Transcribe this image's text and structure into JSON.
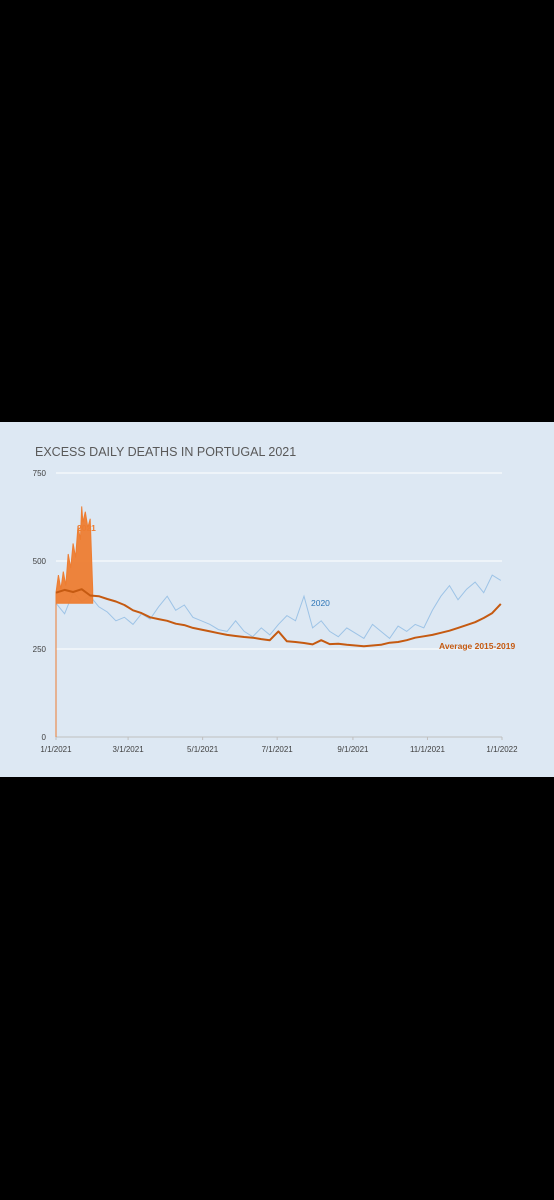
{
  "chart_data": {
    "type": "line",
    "title": "EXCESS DAILY DEATHS IN PORTUGAL 2021",
    "ylim": [
      0,
      750
    ],
    "yticks": [
      0,
      250,
      500,
      750
    ],
    "xlim": [
      "2021-01-01",
      "2022-01-01"
    ],
    "xticks": [
      "1/1/2021",
      "3/1/2021",
      "5/1/2021",
      "7/1/2021",
      "9/1/2021",
      "11/1/2021",
      "1/1/2022"
    ],
    "grid": true,
    "colors": {
      "s2021": "#ed7d31",
      "s2020": "#9dc3e6",
      "avg": "#c55a11",
      "label2020": "#2e75b6"
    },
    "series": [
      {
        "name": "2021",
        "style": "filled-spike",
        "x": [
          "2021-01-01",
          "2021-01-03",
          "2021-01-05",
          "2021-01-07",
          "2021-01-09",
          "2021-01-11",
          "2021-01-13",
          "2021-01-15",
          "2021-01-17",
          "2021-01-19",
          "2021-01-21",
          "2021-01-22",
          "2021-01-23",
          "2021-01-25",
          "2021-01-27",
          "2021-01-29",
          "2021-01-31"
        ],
        "values": [
          410,
          460,
          420,
          470,
          430,
          520,
          480,
          550,
          510,
          600,
          560,
          655,
          610,
          640,
          595,
          620,
          420
        ]
      },
      {
        "name": "2020",
        "x": [
          "2021-01-01",
          "2021-01-08",
          "2021-01-15",
          "2021-01-22",
          "2021-01-29",
          "2021-02-05",
          "2021-02-12",
          "2021-02-19",
          "2021-02-26",
          "2021-03-05",
          "2021-03-12",
          "2021-03-19",
          "2021-03-26",
          "2021-04-02",
          "2021-04-09",
          "2021-04-16",
          "2021-04-23",
          "2021-04-30",
          "2021-05-07",
          "2021-05-14",
          "2021-05-21",
          "2021-05-28",
          "2021-06-04",
          "2021-06-11",
          "2021-06-18",
          "2021-06-25",
          "2021-07-02",
          "2021-07-09",
          "2021-07-16",
          "2021-07-23",
          "2021-07-30",
          "2021-08-06",
          "2021-08-13",
          "2021-08-20",
          "2021-08-27",
          "2021-09-03",
          "2021-09-10",
          "2021-09-17",
          "2021-09-24",
          "2021-10-01",
          "2021-10-08",
          "2021-10-15",
          "2021-10-22",
          "2021-10-29",
          "2021-11-05",
          "2021-11-12",
          "2021-11-19",
          "2021-11-26",
          "2021-12-03",
          "2021-12-10",
          "2021-12-17",
          "2021-12-24",
          "2021-12-31"
        ],
        "values": [
          380,
          350,
          410,
          385,
          400,
          370,
          355,
          330,
          340,
          320,
          350,
          335,
          370,
          400,
          360,
          375,
          340,
          330,
          320,
          305,
          300,
          330,
          300,
          285,
          310,
          290,
          320,
          345,
          330,
          400,
          310,
          330,
          300,
          285,
          310,
          295,
          280,
          320,
          300,
          280,
          315,
          300,
          320,
          310,
          360,
          400,
          430,
          390,
          420,
          440,
          410,
          460,
          445
        ]
      },
      {
        "name": "Average 2015-2019",
        "x": [
          "2021-01-01",
          "2021-01-08",
          "2021-01-15",
          "2021-01-22",
          "2021-01-29",
          "2021-02-05",
          "2021-02-12",
          "2021-02-19",
          "2021-02-26",
          "2021-03-05",
          "2021-03-12",
          "2021-03-19",
          "2021-03-26",
          "2021-04-02",
          "2021-04-09",
          "2021-04-16",
          "2021-04-23",
          "2021-04-30",
          "2021-05-07",
          "2021-05-14",
          "2021-05-21",
          "2021-05-28",
          "2021-06-04",
          "2021-06-11",
          "2021-06-18",
          "2021-06-25",
          "2021-07-02",
          "2021-07-09",
          "2021-07-16",
          "2021-07-23",
          "2021-07-30",
          "2021-08-06",
          "2021-08-13",
          "2021-08-20",
          "2021-08-27",
          "2021-09-03",
          "2021-09-10",
          "2021-09-17",
          "2021-09-24",
          "2021-10-01",
          "2021-10-08",
          "2021-10-15",
          "2021-10-22",
          "2021-10-29",
          "2021-11-05",
          "2021-11-12",
          "2021-11-19",
          "2021-11-26",
          "2021-12-03",
          "2021-12-10",
          "2021-12-17",
          "2021-12-24",
          "2021-12-31"
        ],
        "values": [
          410,
          418,
          412,
          420,
          402,
          400,
          392,
          385,
          375,
          360,
          352,
          340,
          335,
          330,
          322,
          318,
          310,
          305,
          300,
          295,
          290,
          287,
          284,
          282,
          278,
          275,
          300,
          272,
          270,
          267,
          263,
          275,
          264,
          265,
          262,
          260,
          258,
          260,
          262,
          268,
          270,
          275,
          282,
          286,
          290,
          296,
          302,
          310,
          318,
          326,
          338,
          352,
          378
        ]
      }
    ]
  }
}
